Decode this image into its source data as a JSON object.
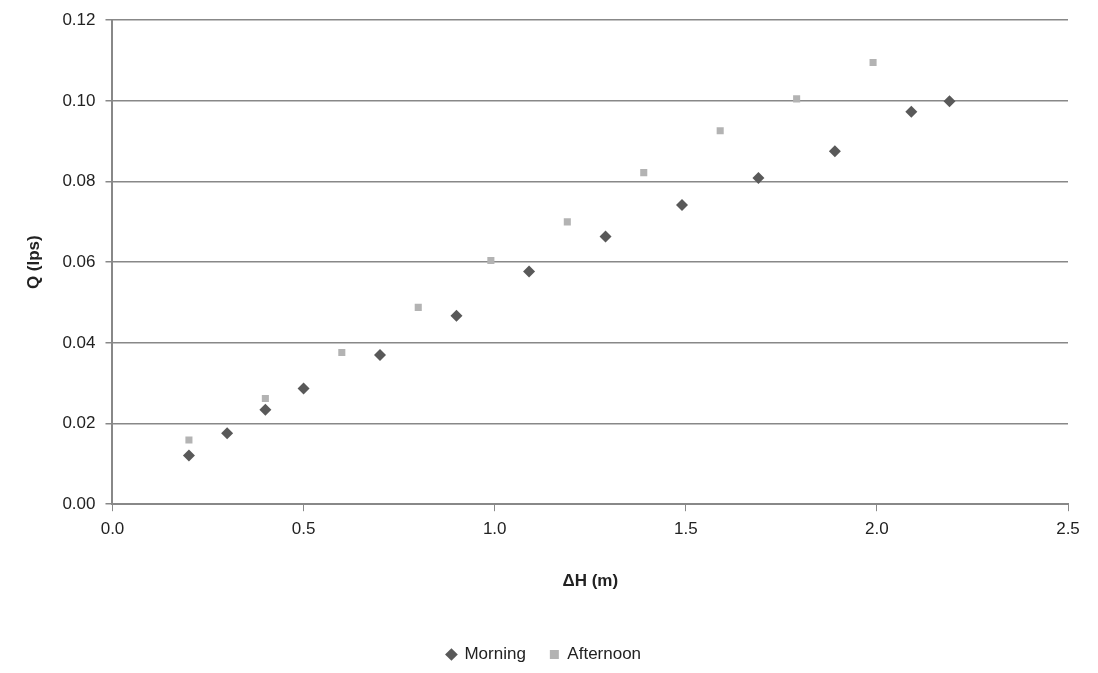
{
  "chart_data": {
    "type": "scatter",
    "xlabel": "ΔH (m)",
    "ylabel": "Q (lps)",
    "xlim": [
      0,
      2.5
    ],
    "xticks": [
      {
        "value": 0,
        "label": "0.0"
      },
      {
        "value": 0.5,
        "label": "0.5"
      },
      {
        "value": 1,
        "label": "1.0"
      },
      {
        "value": 1.5,
        "label": "1.5"
      },
      {
        "value": 2,
        "label": "2.0"
      },
      {
        "value": 2.5,
        "label": "2.5"
      }
    ],
    "ylim": [
      0,
      0.12
    ],
    "yticks": [
      {
        "value": 0,
        "label": "0.00"
      },
      {
        "value": 0.02,
        "label": "0.02"
      },
      {
        "value": 0.04,
        "label": "0.04"
      },
      {
        "value": 0.06,
        "label": "0.06"
      },
      {
        "value": 0.08,
        "label": "0.08"
      },
      {
        "value": 0.1,
        "label": "0.10"
      },
      {
        "value": 0.12,
        "label": "0.12"
      }
    ],
    "grid": "y",
    "legend": "bottom",
    "series": [
      {
        "name": "Morning",
        "color": "#595959",
        "marker": "diamond",
        "x": [
          0.2,
          0.3,
          0.4,
          0.5,
          0.7,
          0.9,
          1.09,
          1.29,
          1.49,
          1.69,
          1.89,
          2.09,
          2.19
        ],
        "values": [
          0.0121,
          0.0176,
          0.0234,
          0.0287,
          0.037,
          0.0467,
          0.0577,
          0.0664,
          0.0742,
          0.0809,
          0.0875,
          0.0973,
          0.0999
        ]
      },
      {
        "name": "Afternoon",
        "color": "#b3b3b3",
        "marker": "square",
        "x": [
          0.2,
          0.4,
          0.6,
          0.8,
          0.99,
          1.19,
          1.39,
          1.59,
          1.79,
          1.99
        ],
        "values": [
          0.0159,
          0.0262,
          0.0376,
          0.0488,
          0.0604,
          0.07,
          0.0822,
          0.0926,
          0.1005,
          0.1095
        ]
      }
    ]
  }
}
